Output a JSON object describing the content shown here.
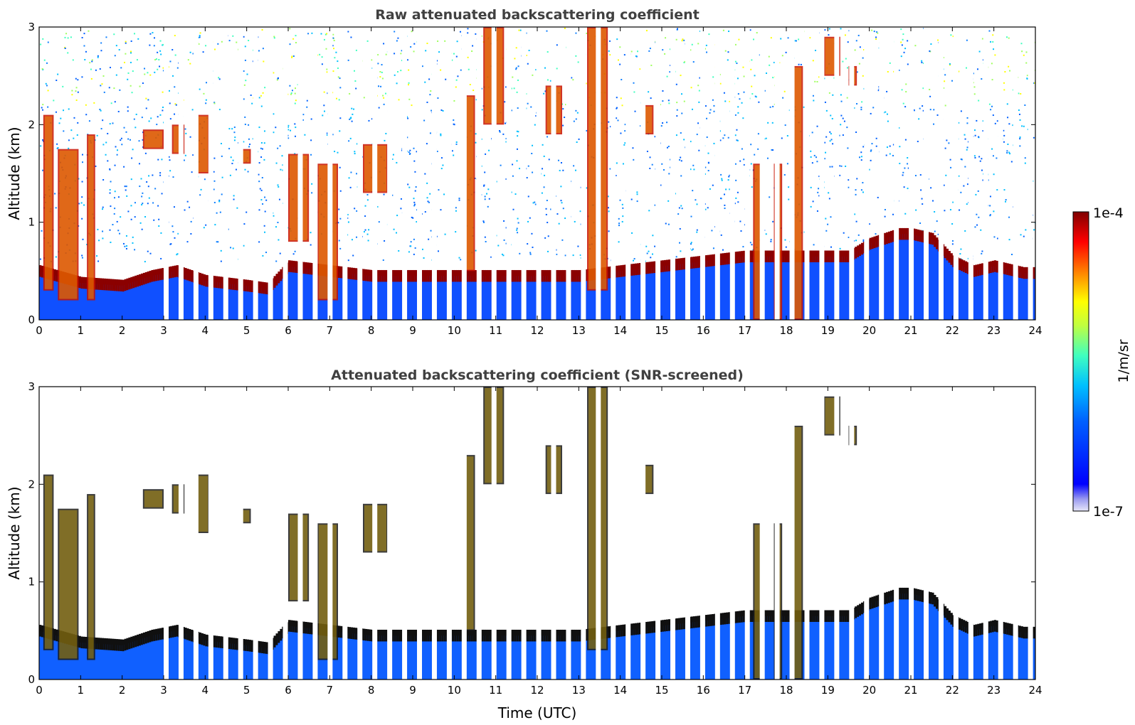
{
  "chart_data": [
    {
      "type": "heatmap",
      "title": "Raw attenuated backscattering coefficient",
      "xlabel": "",
      "ylabel": "Altitude (km)",
      "xlim": [
        0,
        24
      ],
      "ylim": [
        0,
        3
      ],
      "xticks": [
        "0",
        "1",
        "2",
        "3",
        "4",
        "5",
        "6",
        "7",
        "8",
        "9",
        "10",
        "11",
        "12",
        "13",
        "14",
        "15",
        "16",
        "17",
        "18",
        "19",
        "20",
        "21",
        "22",
        "23",
        "24"
      ],
      "yticks": [
        "0",
        "1",
        "2",
        "3"
      ],
      "grid": false,
      "boundary_layer_top_km": [
        [
          0,
          0.5
        ],
        [
          1,
          0.38
        ],
        [
          2,
          0.35
        ],
        [
          2.7,
          0.45
        ],
        [
          3.3,
          0.5
        ],
        [
          4,
          0.4
        ],
        [
          5,
          0.35
        ],
        [
          5.5,
          0.32
        ],
        [
          6,
          0.55
        ],
        [
          7,
          0.5
        ],
        [
          8,
          0.45
        ],
        [
          9,
          0.45
        ],
        [
          10,
          0.45
        ],
        [
          11,
          0.45
        ],
        [
          12,
          0.45
        ],
        [
          13,
          0.45
        ],
        [
          14,
          0.5
        ],
        [
          15,
          0.55
        ],
        [
          16,
          0.6
        ],
        [
          17,
          0.65
        ],
        [
          18,
          0.65
        ],
        [
          19,
          0.65
        ],
        [
          19.5,
          0.65
        ],
        [
          20,
          0.78
        ],
        [
          20.7,
          0.88
        ],
        [
          21,
          0.88
        ],
        [
          21.5,
          0.83
        ],
        [
          22,
          0.6
        ],
        [
          22.5,
          0.5
        ],
        [
          23,
          0.55
        ],
        [
          23.7,
          0.48
        ]
      ],
      "cloud_layers": [
        {
          "time": [
            0.1,
            0.35
          ],
          "altitude_km": [
            0.3,
            2.1
          ]
        },
        {
          "time": [
            0.45,
            0.95
          ],
          "altitude_km": [
            0.2,
            1.75
          ]
        },
        {
          "time": [
            1.15,
            1.35
          ],
          "altitude_km": [
            0.2,
            1.9
          ]
        },
        {
          "time": [
            2.5,
            3.0
          ],
          "altitude_km": [
            1.75,
            1.95
          ]
        },
        {
          "time": [
            3.2,
            3.5
          ],
          "altitude_km": [
            1.7,
            2.0
          ]
        },
        {
          "time": [
            3.8,
            4.1
          ],
          "altitude_km": [
            1.5,
            2.1
          ]
        },
        {
          "time": [
            4.8,
            5.1
          ],
          "altitude_km": [
            1.6,
            1.75
          ]
        },
        {
          "time": [
            6.0,
            6.5
          ],
          "altitude_km": [
            0.8,
            1.7
          ]
        },
        {
          "time": [
            6.7,
            7.2
          ],
          "altitude_km": [
            0.2,
            1.6
          ]
        },
        {
          "time": [
            7.8,
            8.4
          ],
          "altitude_km": [
            1.3,
            1.8
          ]
        },
        {
          "time": [
            10.2,
            10.5
          ],
          "altitude_km": [
            0.5,
            2.3
          ]
        },
        {
          "time": [
            10.7,
            11.2
          ],
          "altitude_km": [
            2.0,
            3.0
          ]
        },
        {
          "time": [
            12.2,
            12.6
          ],
          "altitude_km": [
            1.9,
            2.4
          ]
        },
        {
          "time": [
            13.2,
            13.7
          ],
          "altitude_km": [
            0.3,
            3.0
          ]
        },
        {
          "time": [
            14.5,
            14.8
          ],
          "altitude_km": [
            1.9,
            2.2
          ]
        },
        {
          "time": [
            17.2,
            17.4
          ],
          "altitude_km": [
            0.0,
            1.6
          ]
        },
        {
          "time": [
            17.7,
            17.9
          ],
          "altitude_km": [
            0.0,
            1.6
          ]
        },
        {
          "time": [
            18.1,
            18.4
          ],
          "altitude_km": [
            0.0,
            2.6
          ]
        },
        {
          "time": [
            18.9,
            19.3
          ],
          "altitude_km": [
            2.5,
            2.9
          ]
        },
        {
          "time": [
            19.5,
            19.7
          ],
          "altitude_km": [
            2.4,
            2.6
          ]
        }
      ]
    },
    {
      "type": "heatmap",
      "title": "Attenuated backscattering coefficient (SNR-screened)",
      "xlabel": "Time (UTC)",
      "ylabel": "Altitude (km)",
      "xlim": [
        0,
        24
      ],
      "ylim": [
        0,
        3
      ],
      "xticks": [
        "0",
        "1",
        "2",
        "3",
        "4",
        "5",
        "6",
        "7",
        "8",
        "9",
        "10",
        "11",
        "12",
        "13",
        "14",
        "15",
        "16",
        "17",
        "18",
        "19",
        "20",
        "21",
        "22",
        "23",
        "24"
      ],
      "yticks": [
        "0",
        "1",
        "2",
        "3"
      ],
      "grid": false
    }
  ],
  "colorbar": {
    "label": "1/m/sr",
    "max_label": "1e-4",
    "min_label": "1e-7",
    "scale": "log",
    "range": [
      1e-07,
      0.0001
    ],
    "colormap": "jet",
    "colors": [
      "#e6e6f8",
      "#0000ff",
      "#00bfff",
      "#40ffbf",
      "#ffff00",
      "#ff8000",
      "#ff0000",
      "#800000"
    ]
  }
}
